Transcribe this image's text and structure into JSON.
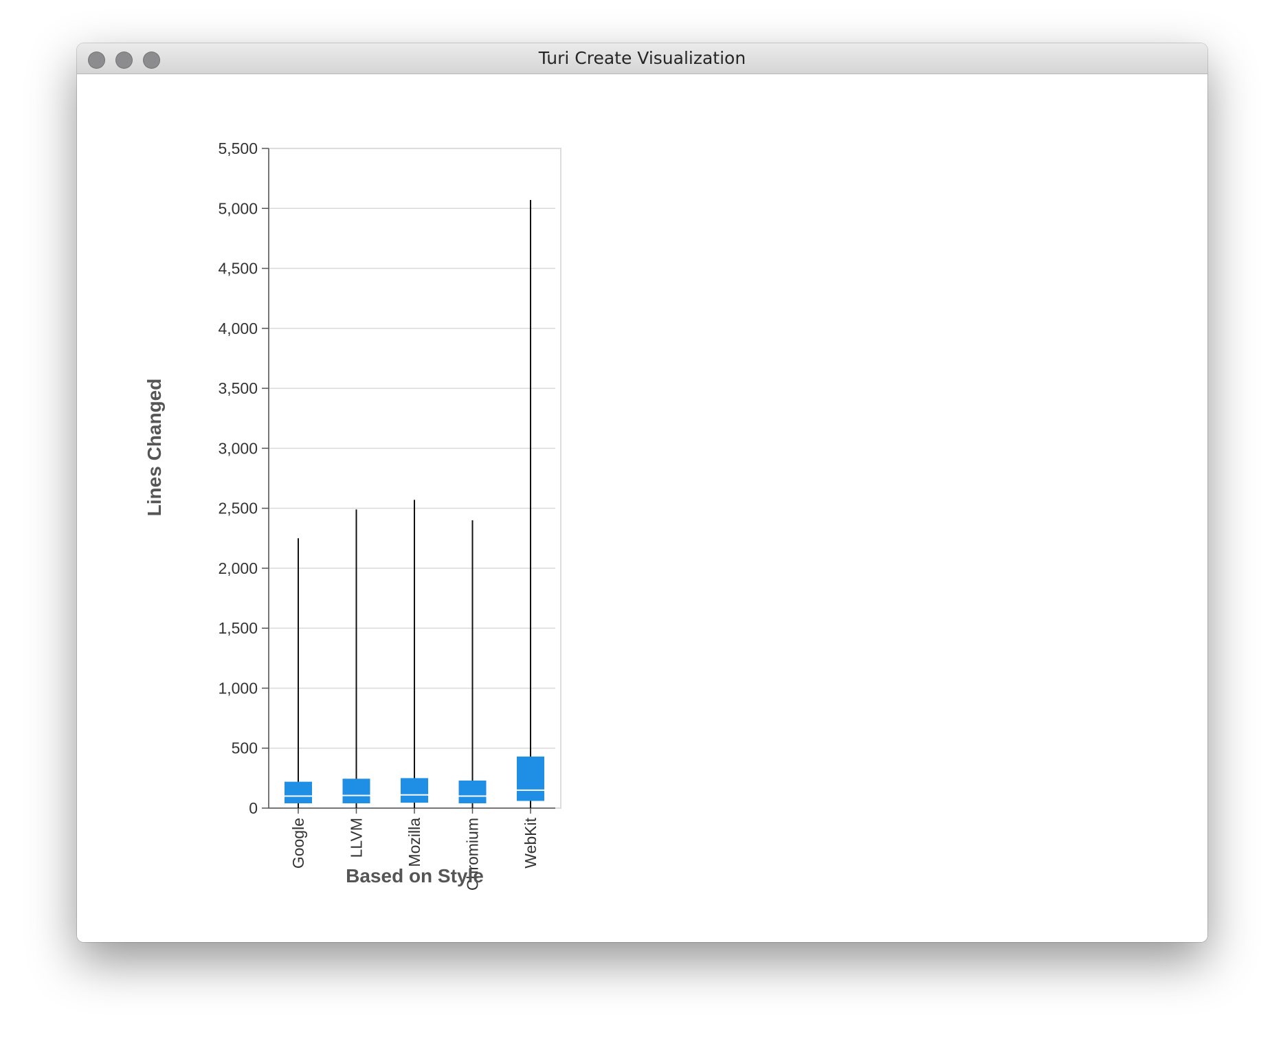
{
  "window": {
    "title": "Turi Create Visualization"
  },
  "chart_data": {
    "type": "boxplot",
    "xlabel": "Based on Style",
    "ylabel": "Lines Changed",
    "ylim": [
      0,
      5500
    ],
    "yticks": [
      0,
      500,
      1000,
      1500,
      2000,
      2500,
      3000,
      3500,
      4000,
      4500,
      5000,
      5500
    ],
    "ytick_labels": [
      "0",
      "500",
      "1,000",
      "1,500",
      "2,000",
      "2,500",
      "3,000",
      "3,500",
      "4,000",
      "4,500",
      "5,000",
      "5,500"
    ],
    "grid": true,
    "box_color": "#1f8fe6",
    "median_color": "#ffffff",
    "categories": [
      "Google",
      "LLVM",
      "Mozilla",
      "Chromium",
      "WebKit"
    ],
    "boxes": [
      {
        "category": "Google",
        "min": 0,
        "q1": 40,
        "median": 100,
        "q3": 220,
        "max": 2250
      },
      {
        "category": "LLVM",
        "min": 0,
        "q1": 40,
        "median": 105,
        "q3": 245,
        "max": 2490
      },
      {
        "category": "Mozilla",
        "min": 0,
        "q1": 45,
        "median": 110,
        "q3": 250,
        "max": 2570
      },
      {
        "category": "Chromium",
        "min": 0,
        "q1": 40,
        "median": 100,
        "q3": 230,
        "max": 2400
      },
      {
        "category": "WebKit",
        "min": 0,
        "q1": 60,
        "median": 150,
        "q3": 430,
        "max": 5070
      }
    ]
  }
}
